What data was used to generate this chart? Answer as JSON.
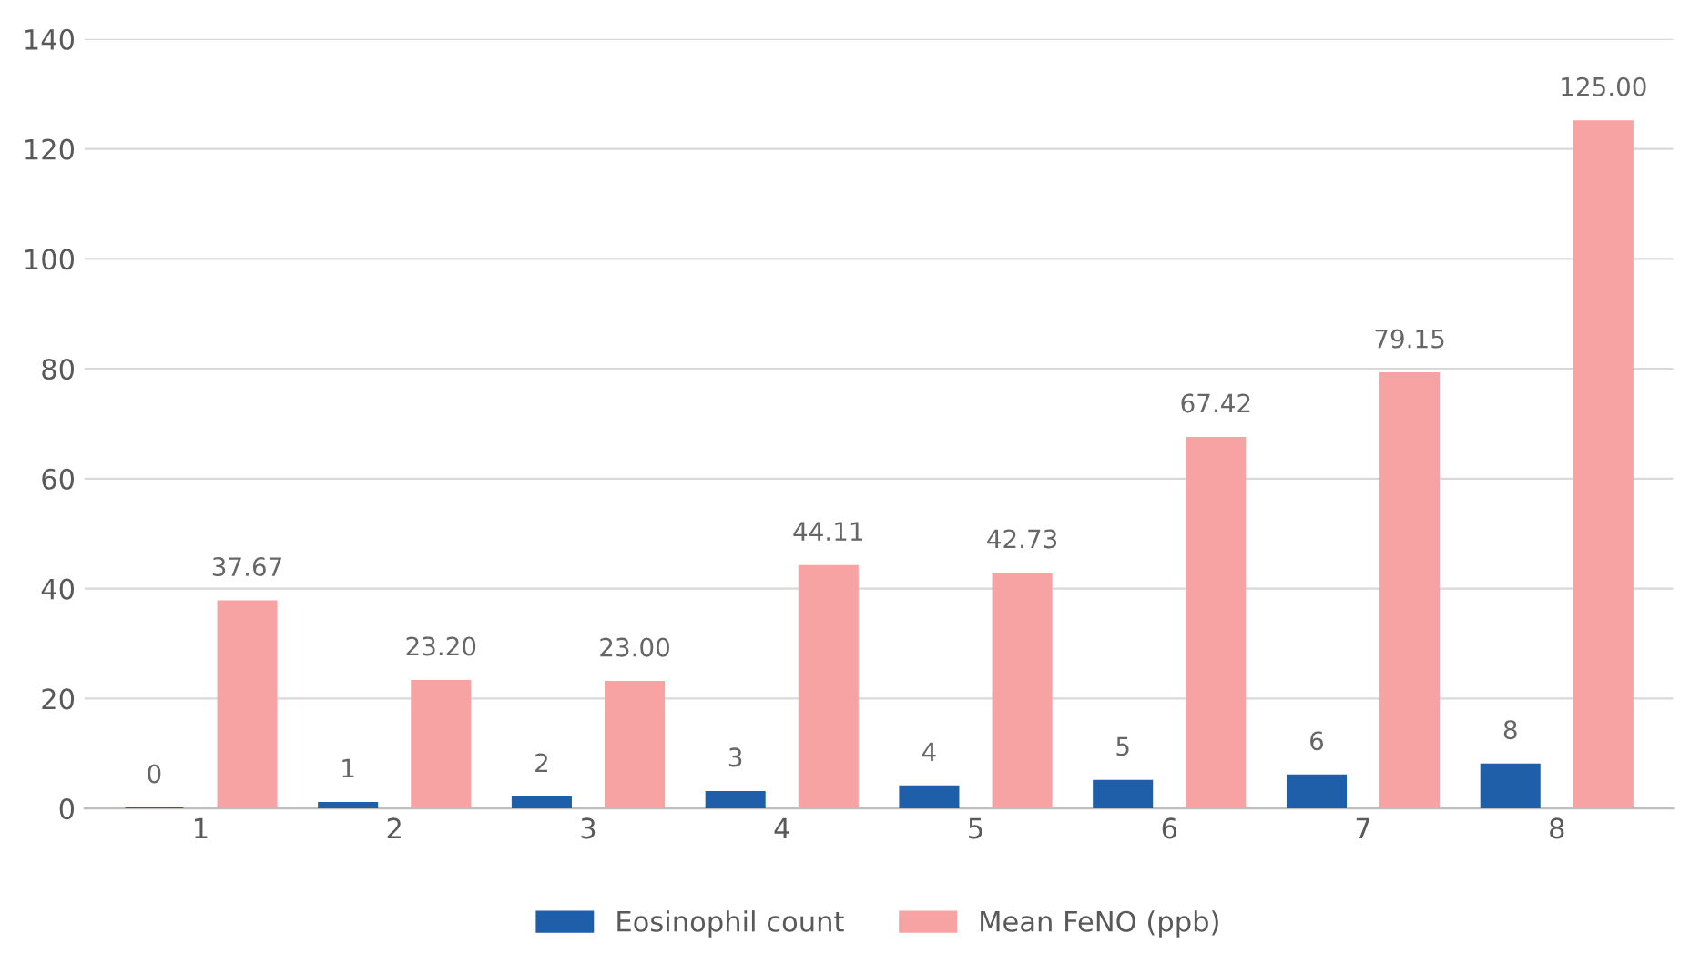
{
  "chart_data": {
    "type": "bar",
    "categories": [
      "1",
      "2",
      "3",
      "4",
      "5",
      "6",
      "7",
      "8"
    ],
    "series": [
      {
        "name": "Eosinophil count",
        "color": "#1f5ea8",
        "values": [
          0,
          1,
          2,
          3,
          4,
          5,
          6,
          8
        ],
        "value_labels": [
          "0",
          "1",
          "2",
          "3",
          "4",
          "5",
          "6",
          "8"
        ]
      },
      {
        "name": "Mean FeNO (ppb)",
        "color": "#f7a3a3",
        "values": [
          37.67,
          23.2,
          23.0,
          44.11,
          42.73,
          67.42,
          79.15,
          125.0
        ],
        "value_labels": [
          "37.67",
          "23.20",
          "23.00",
          "44.11",
          "42.73",
          "67.42",
          "79.15",
          "125.00"
        ]
      }
    ],
    "ylim": [
      0,
      140
    ],
    "yticks": [
      0,
      20,
      40,
      60,
      80,
      100,
      120,
      140
    ],
    "grid": "y",
    "legend": "bottom"
  }
}
